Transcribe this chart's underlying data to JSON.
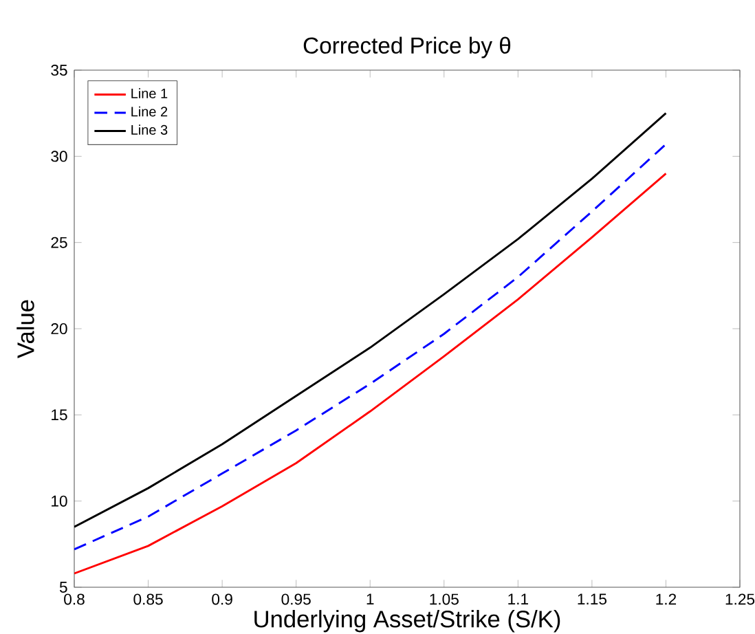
{
  "chart_data": {
    "type": "line",
    "title": "Corrected Price by θ",
    "xlabel": "Underlying Asset/Strike (S/K)",
    "ylabel": "Value",
    "x": [
      0.8,
      0.85,
      0.9,
      0.95,
      1.0,
      1.05,
      1.1,
      1.15,
      1.2
    ],
    "series": [
      {
        "name": "Line 1",
        "color": "#ff0000",
        "line_style": "solid",
        "values": [
          5.8,
          7.4,
          9.7,
          12.2,
          15.2,
          18.4,
          21.7,
          25.3,
          29.0
        ]
      },
      {
        "name": "Line 2",
        "color": "#0000ff",
        "line_style": "dashed",
        "values": [
          7.2,
          9.1,
          11.6,
          14.1,
          16.8,
          19.7,
          23.0,
          26.8,
          30.7
        ]
      },
      {
        "name": "Line 3",
        "color": "#000000",
        "line_style": "solid",
        "values": [
          8.5,
          10.75,
          13.3,
          16.1,
          18.9,
          22.0,
          25.2,
          28.7,
          32.5
        ]
      }
    ],
    "xlim": [
      0.8,
      1.25
    ],
    "ylim": [
      5,
      35
    ],
    "xticks": [
      0.8,
      0.85,
      0.9,
      0.95,
      1,
      1.05,
      1.1,
      1.15,
      1.2,
      1.25
    ],
    "yticks": [
      5,
      10,
      15,
      20,
      25,
      30,
      35
    ],
    "grid": false,
    "legend": "top left",
    "marker": "none"
  }
}
